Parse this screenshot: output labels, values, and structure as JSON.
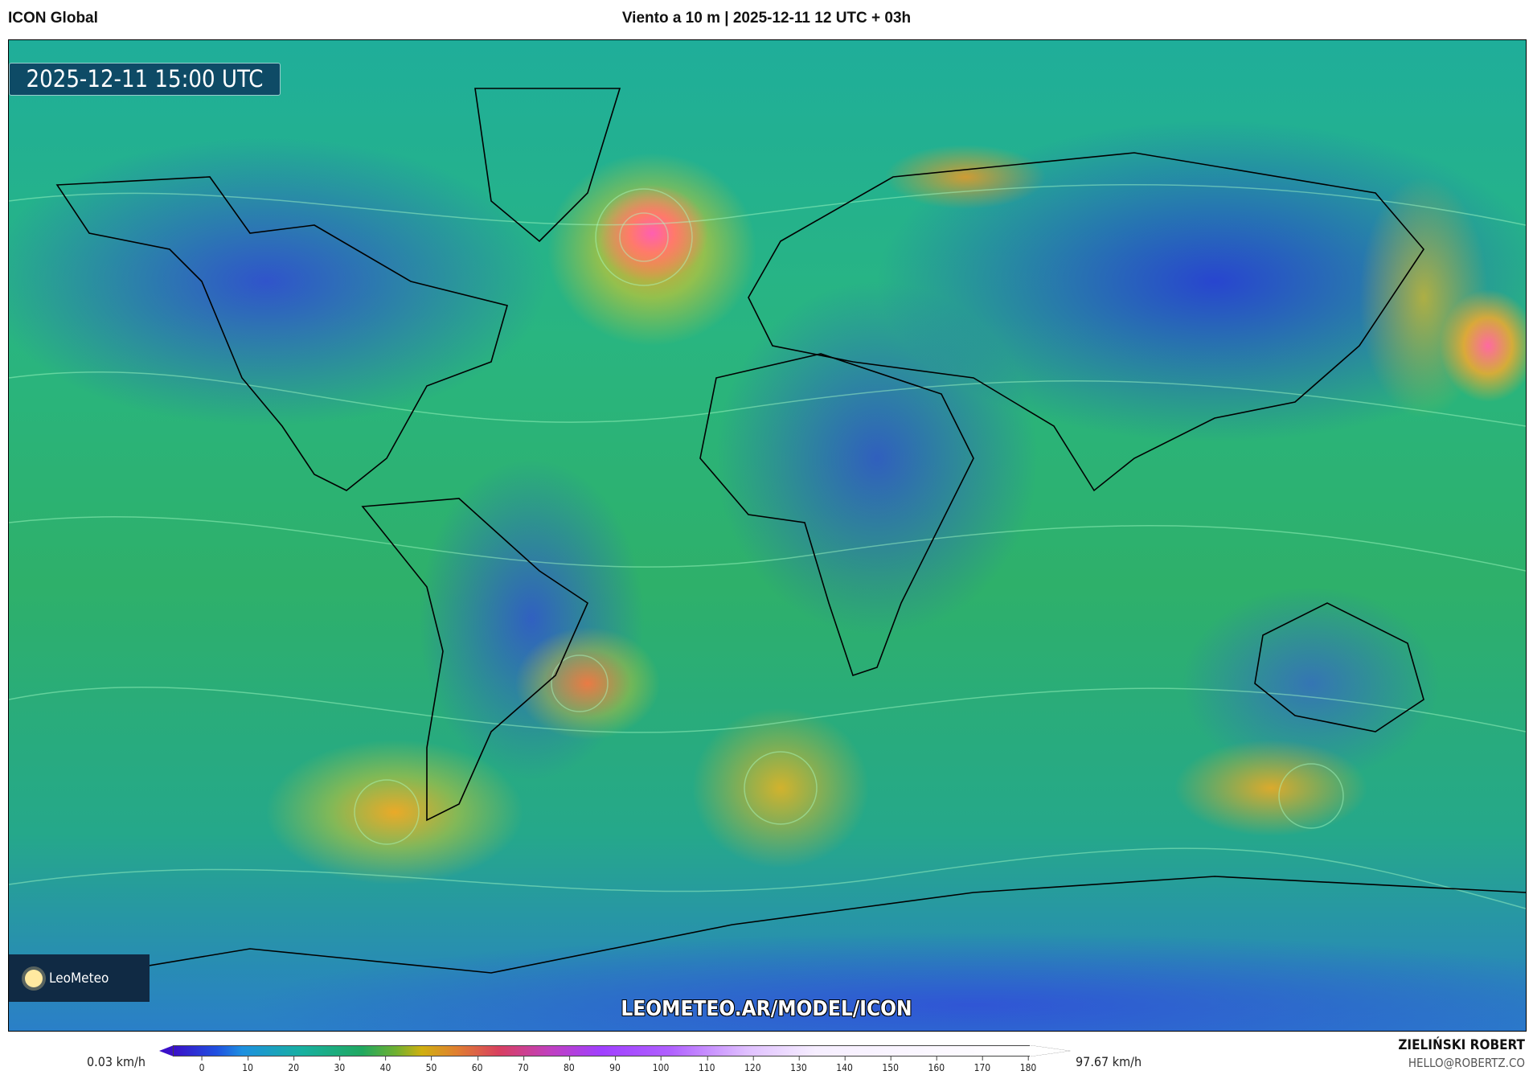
{
  "header": {
    "model": "ICON Global",
    "title": "Viento a 10 m | 2025-12-11 12 UTC + 03h"
  },
  "map": {
    "valid_time": "2025-12-11 15:00 UTC",
    "logo": "LeoMeteo",
    "url": "LEOMETEO.AR/MODEL/ICON"
  },
  "colorbar": {
    "min_label": "0.03 km/h",
    "max_label": "97.67 km/h",
    "ticks": [
      "0",
      "10",
      "20",
      "30",
      "40",
      "50",
      "60",
      "70",
      "80",
      "90",
      "100",
      "110",
      "120",
      "130",
      "140",
      "150",
      "160",
      "170",
      "180"
    ]
  },
  "credits": {
    "author": "ZIELIŃSKI ROBERT",
    "email": "HELLO@ROBERTZ.CO"
  }
}
